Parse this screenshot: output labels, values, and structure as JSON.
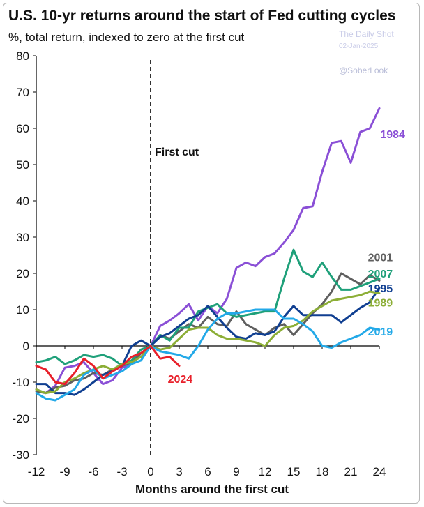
{
  "header": {
    "title": "U.S. 10-yr returns around the start of Fed cutting cycles",
    "subtitle": "%, total return, indexed to zero at the first cut",
    "source": "The Daily Shot",
    "date": "02-Jan-2025",
    "handle": "@SoberLook"
  },
  "chart_data": {
    "type": "line",
    "xlabel": "Months around the first cut",
    "ylabel": "",
    "xlim": [
      -12,
      24
    ],
    "ylim": [
      -30,
      80
    ],
    "xticks": [
      -12,
      -9,
      -6,
      -3,
      0,
      3,
      6,
      9,
      12,
      15,
      18,
      21,
      24
    ],
    "yticks": [
      -30,
      -20,
      -10,
      0,
      10,
      20,
      30,
      40,
      50,
      60,
      70,
      80
    ],
    "grid": false,
    "legend": "inline labels at series ends",
    "annotation": {
      "text": "First cut",
      "x": 0
    },
    "series": [
      {
        "name": "1984",
        "color": "#8a4fd6",
        "label_x": 24.1,
        "label_y": 58.5,
        "x": [
          -12,
          -11,
          -10,
          -9,
          -8,
          -7,
          -6,
          -5,
          -4,
          -3,
          -2,
          -1,
          0,
          1,
          2,
          3,
          4,
          5,
          6,
          7,
          8,
          9,
          10,
          11,
          12,
          13,
          14,
          15,
          16,
          17,
          18,
          19,
          20,
          21,
          22,
          23,
          24
        ],
        "values": [
          -12,
          -13,
          -11,
          -6,
          -5.5,
          -4.5,
          -7.5,
          -10.5,
          -9.5,
          -6,
          -5,
          -2,
          0,
          5.5,
          7,
          9,
          11.5,
          7,
          11,
          9,
          13,
          21.5,
          23,
          22,
          24.5,
          25.5,
          28.5,
          32,
          38,
          38.5,
          48,
          56,
          56.5,
          50.5,
          59,
          60,
          65.5
        ]
      },
      {
        "name": "2001",
        "color": "#5f5f5f",
        "label_x": 22.8,
        "label_y": 24.5,
        "x": [
          -12,
          -11,
          -10,
          -9,
          -8,
          -7,
          -6,
          -5,
          -4,
          -3,
          -2,
          -1,
          0,
          1,
          2,
          3,
          4,
          5,
          6,
          7,
          8,
          9,
          10,
          11,
          12,
          13,
          14,
          15,
          16,
          17,
          18,
          19,
          20,
          21,
          22,
          23,
          24
        ],
        "values": [
          -12.5,
          -13,
          -11.5,
          -11,
          -9.5,
          -9,
          -7.5,
          -8,
          -6.5,
          -5.5,
          -4.5,
          -2,
          0,
          3,
          2,
          4,
          6,
          5,
          8,
          6,
          5.5,
          9.5,
          6,
          4.5,
          3,
          5,
          6,
          3,
          6,
          9,
          11.5,
          15,
          20,
          18.5,
          17,
          19.5,
          18
        ]
      },
      {
        "name": "2007",
        "color": "#1fa07a",
        "label_x": 22.8,
        "label_y": 20,
        "x": [
          -12,
          -11,
          -10,
          -9,
          -8,
          -7,
          -6,
          -5,
          -4,
          -3,
          -2,
          -1,
          0,
          1,
          2,
          3,
          4,
          5,
          6,
          7,
          8,
          9,
          10,
          11,
          12,
          13,
          14,
          15,
          16,
          17,
          18,
          19,
          20,
          21,
          22,
          23,
          24
        ],
        "values": [
          -4.5,
          -4,
          -3,
          -5,
          -4,
          -2.5,
          -3,
          -2.5,
          -3.5,
          -5.5,
          -4,
          -1,
          0,
          3,
          1.5,
          5,
          5,
          9.5,
          10.5,
          11.5,
          9,
          8,
          8.5,
          9,
          9.5,
          9.5,
          18.5,
          26.5,
          20.5,
          19,
          23,
          19,
          15.5,
          15.5,
          16.5,
          17.5,
          18.5
        ]
      },
      {
        "name": "1995",
        "color": "#103f91",
        "label_x": 22.8,
        "label_y": 16,
        "x": [
          -12,
          -11,
          -10,
          -9,
          -8,
          -7,
          -6,
          -5,
          -4,
          -3,
          -2,
          -1,
          0,
          1,
          2,
          3,
          4,
          5,
          6,
          7,
          8,
          9,
          10,
          11,
          12,
          13,
          14,
          15,
          16,
          17,
          18,
          19,
          20,
          21,
          22,
          23,
          24
        ],
        "values": [
          -10.5,
          -10.5,
          -13,
          -13,
          -13.5,
          -12,
          -10,
          -8,
          -7,
          -5.5,
          0,
          1.5,
          0,
          2.5,
          3.5,
          5.5,
          7.5,
          8.5,
          11,
          8,
          5,
          2.5,
          2,
          3.5,
          3,
          4,
          8,
          11,
          8.5,
          8.5,
          8.5,
          8.5,
          6.5,
          8.5,
          10.5,
          12,
          16
        ]
      },
      {
        "name": "1989",
        "color": "#8cae36",
        "label_x": 22.8,
        "label_y": 12,
        "x": [
          -12,
          -11,
          -10,
          -9,
          -8,
          -7,
          -6,
          -5,
          -4,
          -3,
          -2,
          -1,
          0,
          1,
          2,
          3,
          4,
          5,
          6,
          7,
          8,
          9,
          10,
          11,
          12,
          13,
          14,
          15,
          16,
          17,
          18,
          19,
          20,
          21,
          22,
          23,
          24
        ],
        "values": [
          -12,
          -13,
          -12.5,
          -10,
          -9,
          -7.5,
          -6.5,
          -5.5,
          -6.5,
          -5,
          -4.5,
          -3,
          0,
          -1,
          -0.5,
          2,
          4.5,
          5,
          5,
          3,
          2,
          2,
          1.5,
          1,
          0,
          3,
          5,
          5.5,
          7,
          9.5,
          11,
          12.5,
          13,
          13.5,
          14,
          15,
          14.5
        ]
      },
      {
        "name": "2019",
        "color": "#23a9e8",
        "label_x": 22.8,
        "label_y": 4,
        "x": [
          -12,
          -11,
          -10,
          -9,
          -8,
          -7,
          -6,
          -5,
          -4,
          -3,
          -2,
          -1,
          0,
          1,
          2,
          3,
          4,
          5,
          6,
          7,
          8,
          9,
          10,
          11,
          12,
          13,
          14,
          15,
          16,
          17,
          18,
          19,
          20,
          21,
          22,
          23,
          24
        ],
        "values": [
          -13,
          -14.5,
          -15,
          -13.5,
          -12,
          -8,
          -6.5,
          -9,
          -8,
          -7,
          -5,
          -4,
          0,
          -1.5,
          -2,
          -2.5,
          -3.5,
          0,
          4.5,
          7.5,
          9,
          9,
          9.5,
          10,
          10,
          10,
          7.5,
          7.5,
          6,
          4,
          0,
          -0.5,
          1,
          2,
          3,
          5,
          4.5
        ]
      },
      {
        "name": "2024",
        "color": "#e8202a",
        "label_x": 1.8,
        "label_y": -9,
        "x": [
          -12,
          -11,
          -10,
          -9,
          -8,
          -7,
          -6,
          -5,
          -4,
          -3,
          -2,
          -1,
          0,
          1,
          2,
          3
        ],
        "values": [
          -5.5,
          -6.5,
          -10,
          -10.5,
          -7.5,
          -3.5,
          -5.5,
          -9,
          -7,
          -5.5,
          -3,
          -2,
          0,
          -3.5,
          -3,
          -5.5
        ]
      }
    ]
  }
}
